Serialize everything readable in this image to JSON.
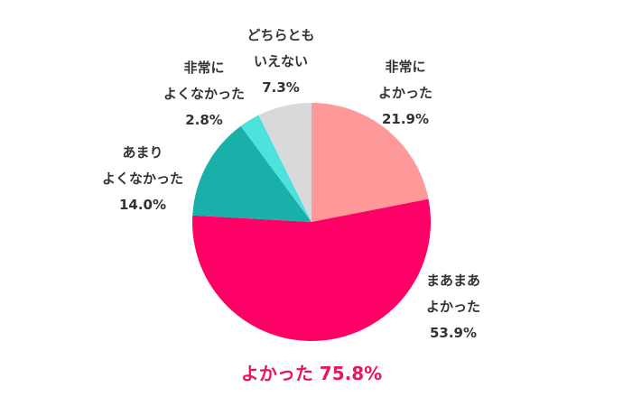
{
  "chart_data": {
    "type": "pie",
    "title": "",
    "start_angle_deg": 0,
    "direction": "clockwise",
    "slices": [
      {
        "name": "非常によかった",
        "line1": "非常に",
        "line2": "よかった",
        "value": 21.9,
        "value_label": "21.9%",
        "color": "#FF9999"
      },
      {
        "name": "まあまあよかった",
        "line1": "まあまあ",
        "line2": "よかった",
        "value": 53.9,
        "value_label": "53.9%",
        "color": "#FF0066"
      },
      {
        "name": "あまりよくなかった",
        "line1": "あまり",
        "line2": "よくなかった",
        "value": 14.0,
        "value_label": "14.0%",
        "color": "#1AB0AA"
      },
      {
        "name": "非常によくなかった",
        "line1": "非常に",
        "line2": "よくなかった",
        "value": 2.8,
        "value_label": "2.8%",
        "color": "#4DE2DC"
      },
      {
        "name": "どちらともいえない",
        "line1": "どちらとも",
        "line2": "いえない",
        "value": 7.3,
        "value_label": "7.3%",
        "color": "#D9D9D9"
      }
    ],
    "summary_annotation": {
      "text": "よかった 75.8%",
      "color": "#E8145F"
    }
  },
  "label_color": "#333333"
}
